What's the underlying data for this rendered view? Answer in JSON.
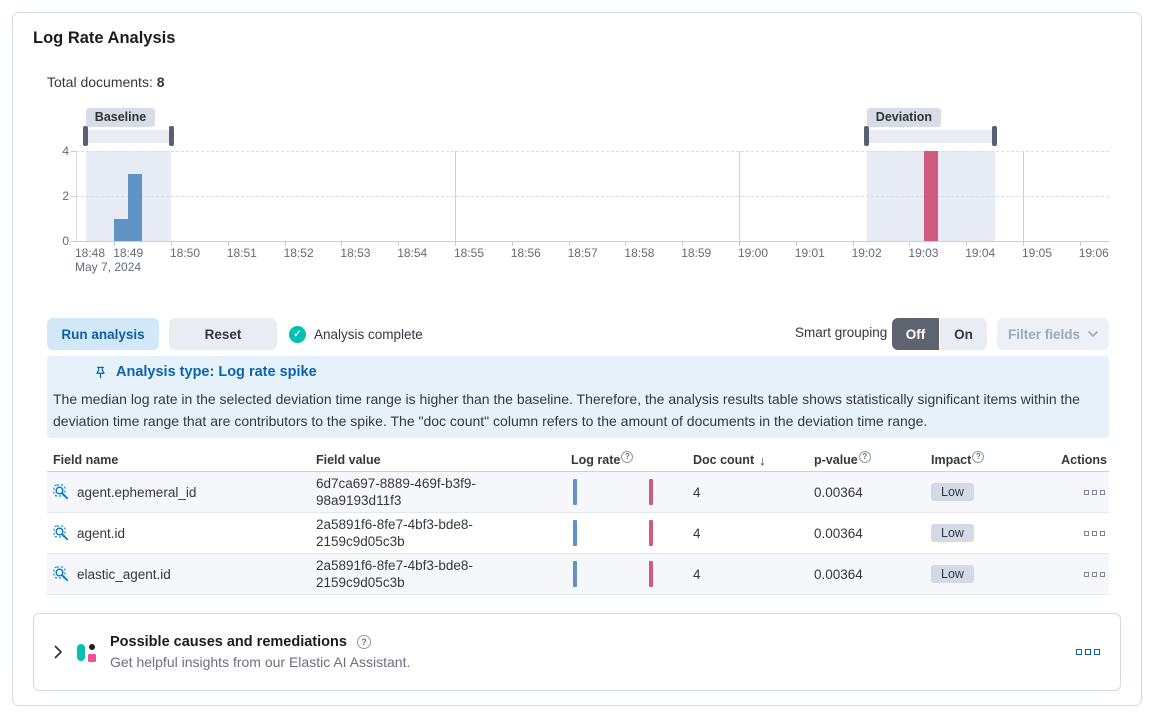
{
  "app": {
    "title": "Log Rate Analysis"
  },
  "summary": {
    "total_documents_label": "Total documents:",
    "total_documents_value": "8"
  },
  "chart": {
    "baseline_badge": "Baseline",
    "deviation_badge": "Deviation",
    "date_label": "May 7, 2024",
    "y_ticks": [
      "4",
      "2",
      "0"
    ],
    "x_ticks": [
      "18:48",
      "18:49",
      "18:50",
      "18:51",
      "18:52",
      "18:53",
      "18:54",
      "18:55",
      "18:56",
      "18:57",
      "18:58",
      "18:59",
      "19:00",
      "19:01",
      "19:02",
      "19:03",
      "19:04",
      "19:05",
      "19:06"
    ]
  },
  "chart_data": {
    "type": "bar",
    "x_axis": "time (May 7, 2024)",
    "y_axis": "document count",
    "ylim": [
      0,
      4
    ],
    "bucket_interval": "15s",
    "series": [
      {
        "name": "baseline",
        "color": "#5E93C4",
        "points": [
          {
            "time": "18:49:00",
            "value": 1
          },
          {
            "time": "18:49:15",
            "value": 3
          }
        ]
      },
      {
        "name": "deviation",
        "color": "#CF5B7F",
        "points": [
          {
            "time": "19:03:15",
            "value": 4
          }
        ]
      }
    ],
    "baseline_window": {
      "start": "18:48:30",
      "end": "18:50:00"
    },
    "deviation_window": {
      "start": "19:02:15",
      "end": "19:04:30"
    },
    "x_range": {
      "start": "18:48",
      "end": "19:06"
    },
    "vertical_gridlines": [
      "18:55",
      "19:00",
      "19:05"
    ]
  },
  "controls": {
    "run_button": "Run analysis",
    "reset_button": "Reset",
    "status_text": "Analysis complete",
    "smart_grouping_label": "Smart grouping",
    "toggle_off": "Off",
    "toggle_on": "On",
    "filter_fields_button": "Filter fields"
  },
  "callout": {
    "title": "Analysis type: Log rate spike",
    "body": "The median log rate in the selected deviation time range is higher than the baseline. Therefore, the analysis results table shows statistically significant items within the deviation time range that are contributors to the spike. The \"doc count\" column refers to the amount of documents in the deviation time range."
  },
  "table": {
    "headers": {
      "field_name": "Field name",
      "field_value": "Field value",
      "log_rate": "Log rate",
      "doc_count": "Doc count",
      "p_value": "p-value",
      "impact": "Impact",
      "actions": "Actions"
    },
    "rows": [
      {
        "field_name": "agent.ephemeral_id",
        "field_value": "6d7ca697-8889-469f-b3f9-98a9193d11f3",
        "doc_count": "4",
        "p_value": "0.00364",
        "impact": "Low"
      },
      {
        "field_name": "agent.id",
        "field_value": "2a5891f6-8fe7-4bf3-bde8-2159c9d05c3b",
        "doc_count": "4",
        "p_value": "0.00364",
        "impact": "Low"
      },
      {
        "field_name": "elastic_agent.id",
        "field_value": "2a5891f6-8fe7-4bf3-bde8-2159c9d05c3b",
        "doc_count": "4",
        "p_value": "0.00364",
        "impact": "Low"
      }
    ]
  },
  "footer": {
    "title": "Possible causes and remediations",
    "subtitle": "Get helpful insights from our Elastic AI Assistant."
  },
  "glyphs": {
    "question": "?",
    "sort_desc": "↓",
    "check": "✓"
  },
  "colors": {
    "primary": "#0077CC",
    "baseline_bar": "#5E93C4",
    "deviation_bar": "#CF5B7F",
    "success": "#00BFB3",
    "badge_bg": "#D3DAE6",
    "callout_bg": "#E6F1FA"
  }
}
